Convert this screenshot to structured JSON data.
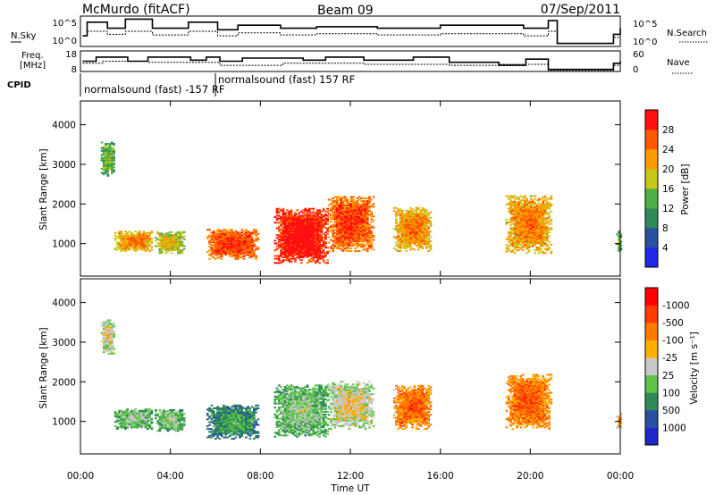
{
  "header": {
    "station": "McMurdo (fitACF)",
    "beam": "Beam 09",
    "date": "07/Sep/2011"
  },
  "top_panels": {
    "nsky_label": "N.Sky",
    "nsky_ticks": [
      "10^5",
      "10^0"
    ],
    "nsearch_label": "N.Search",
    "nsearch_ticks": [
      "10^5",
      "10^0"
    ],
    "freq_label_1": "Freq.",
    "freq_label_2": "[MHz]",
    "freq_ticks": [
      "18",
      "8"
    ],
    "nave_label": "Nave",
    "nave_ticks": [
      "60",
      "0"
    ],
    "cpid_label": "CPID",
    "cpid_modes": [
      "normalsound (fast) -157 RF",
      "normalsound (fast) 157 RF"
    ]
  },
  "chart_data": [
    {
      "type": "heatmap",
      "ylabel": "Slant Range [km]",
      "y_ticks": [
        1000,
        2000,
        3000,
        4000
      ],
      "ylim": [
        180,
        4600
      ],
      "x_ticks": [
        "00:00",
        "04:00",
        "08:00",
        "12:00",
        "16:00",
        "20:00",
        "00:00"
      ],
      "xlim_hours": [
        0,
        24
      ],
      "colorbar": {
        "label": "Power [dB]",
        "ticks": [
          "4",
          "8",
          "12",
          "16",
          "20",
          "24",
          "28"
        ],
        "colors": [
          "#1e28e6",
          "#2850a0",
          "#2e8b57",
          "#4fb046",
          "#c8c818",
          "#ff9a00",
          "#ff5a00",
          "#ff1010"
        ]
      },
      "regions": [
        {
          "t0": 0.9,
          "t1": 1.5,
          "r0": 2700,
          "r1": 3550,
          "level": 3
        },
        {
          "t0": 1.5,
          "t1": 3.2,
          "r0": 800,
          "r1": 1300,
          "level": 5
        },
        {
          "t0": 3.3,
          "t1": 4.6,
          "r0": 750,
          "r1": 1300,
          "level": 4
        },
        {
          "t0": 5.6,
          "t1": 7.9,
          "r0": 600,
          "r1": 1350,
          "level": 6
        },
        {
          "t0": 8.6,
          "t1": 11.0,
          "r0": 500,
          "r1": 1900,
          "level": 7
        },
        {
          "t0": 11.0,
          "t1": 13.0,
          "r0": 800,
          "r1": 2200,
          "level": 6
        },
        {
          "t0": 13.9,
          "t1": 15.6,
          "r0": 800,
          "r1": 1900,
          "level": 5
        },
        {
          "t0": 18.9,
          "t1": 20.9,
          "r0": 750,
          "r1": 2200,
          "level": 5
        },
        {
          "t0": 23.8,
          "t1": 24.0,
          "r0": 800,
          "r1": 1300,
          "level": 3
        }
      ]
    },
    {
      "type": "heatmap",
      "ylabel": "Slant Range [km]",
      "y_ticks": [
        1000,
        2000,
        3000,
        4000
      ],
      "ylim": [
        180,
        4600
      ],
      "x_ticks": [
        "00:00",
        "04:00",
        "08:00",
        "12:00",
        "16:00",
        "20:00",
        "00:00"
      ],
      "xlim_hours": [
        0,
        24
      ],
      "xlabel": "Time UT",
      "colorbar": {
        "label": "Velocity [m s⁻¹]",
        "ticks": [
          "1000",
          "500",
          "100",
          "25",
          "-25",
          "-100",
          "-500",
          "-1000"
        ],
        "colors": [
          "#1e28c8",
          "#2850a0",
          "#2e8b57",
          "#5cc44a",
          "#c8c8c8",
          "#ffb000",
          "#ff7a00",
          "#ff3a00",
          "#ff0000"
        ]
      },
      "regions": [
        {
          "t0": 0.9,
          "t1": 1.5,
          "r0": 2700,
          "r1": 3550,
          "level": 4
        },
        {
          "t0": 1.5,
          "t1": 3.2,
          "r0": 800,
          "r1": 1300,
          "level": 3
        },
        {
          "t0": 3.3,
          "t1": 4.6,
          "r0": 750,
          "r1": 1300,
          "level": 3
        },
        {
          "t0": 5.6,
          "t1": 7.9,
          "r0": 550,
          "r1": 1400,
          "level": 2
        },
        {
          "t0": 8.6,
          "t1": 11.0,
          "r0": 600,
          "r1": 1900,
          "level": 3
        },
        {
          "t0": 11.0,
          "t1": 13.0,
          "r0": 800,
          "r1": 2000,
          "level": 4
        },
        {
          "t0": 13.9,
          "t1": 15.6,
          "r0": 800,
          "r1": 1900,
          "level": 6
        },
        {
          "t0": 18.9,
          "t1": 20.9,
          "r0": 800,
          "r1": 2200,
          "level": 6
        },
        {
          "t0": 23.8,
          "t1": 24.0,
          "r0": 800,
          "r1": 1200,
          "level": 5
        }
      ]
    }
  ]
}
